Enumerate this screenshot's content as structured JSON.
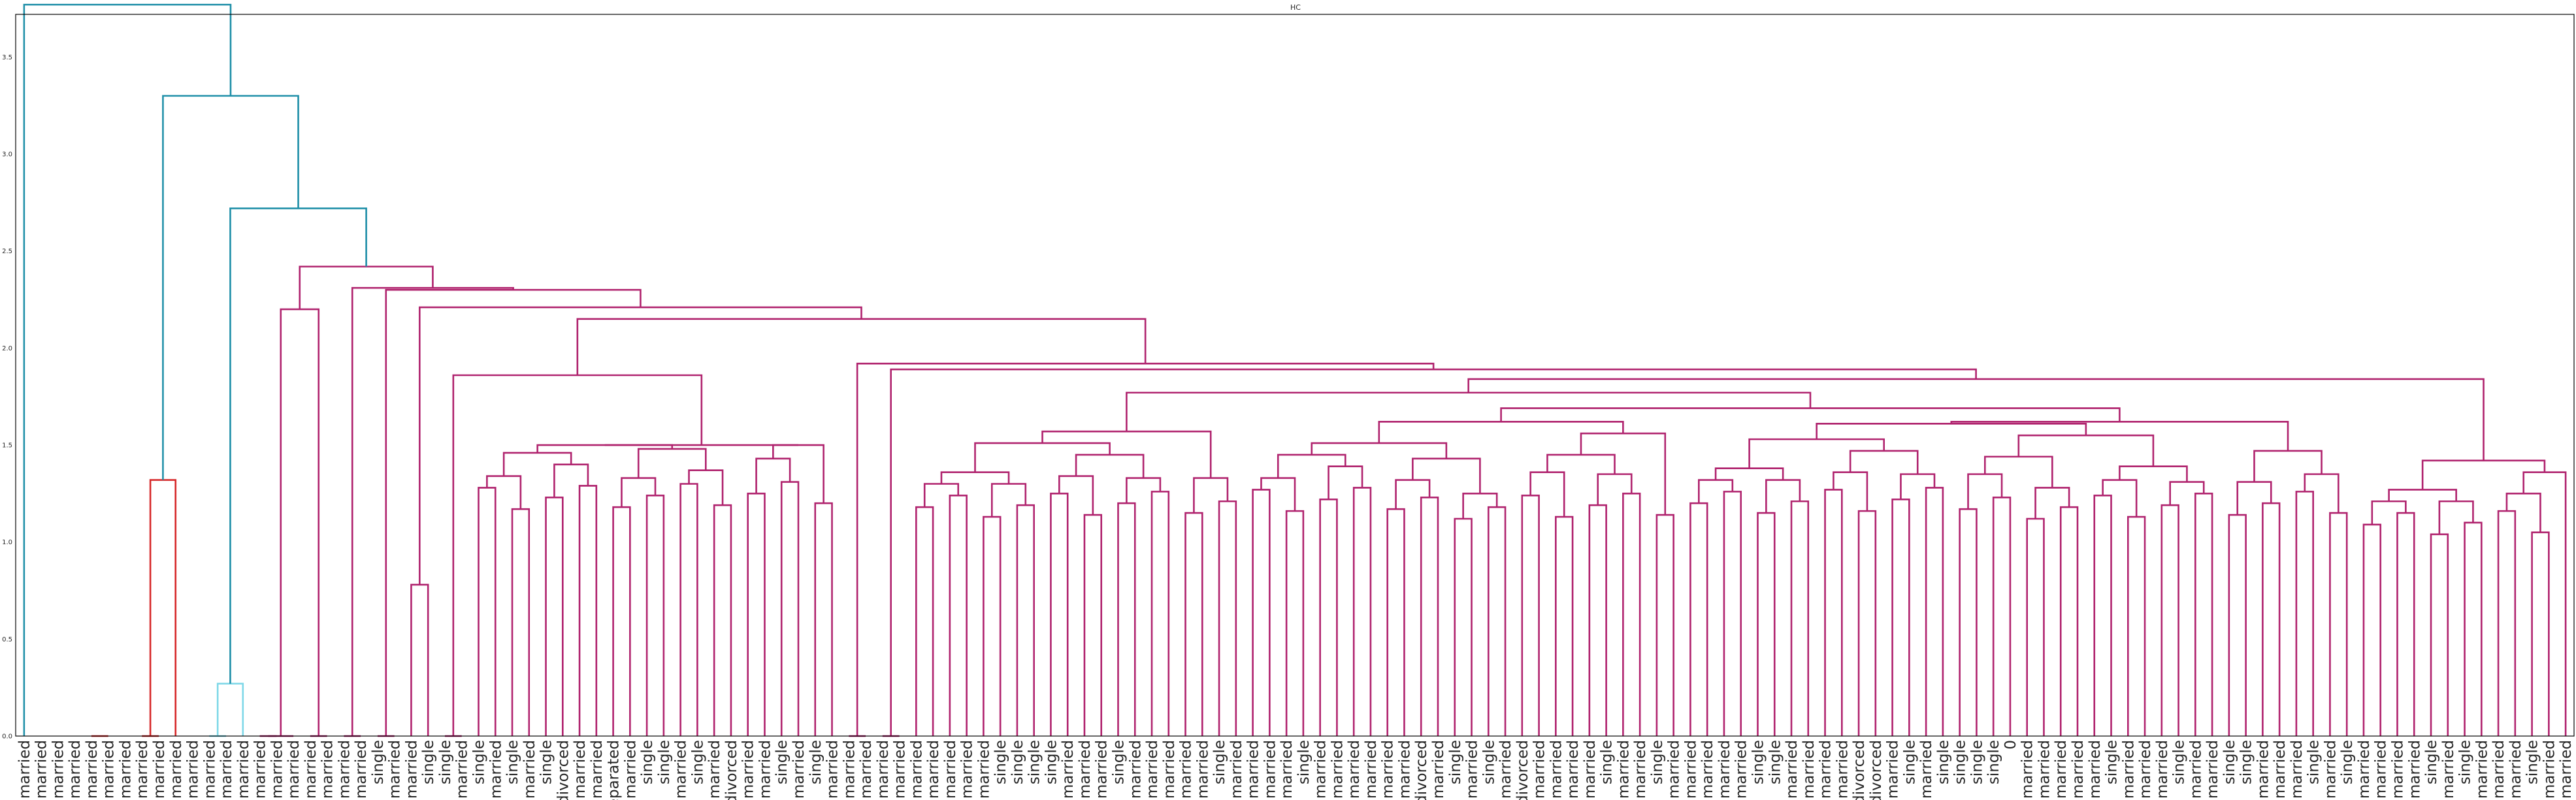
{
  "chart_data": {
    "type": "dendrogram",
    "title": "HC",
    "xlabel": "",
    "ylabel": "",
    "ylim": [
      0,
      3.72
    ],
    "yticks": [
      0.0,
      0.5,
      1.0,
      1.5,
      2.0,
      2.5,
      3.0,
      3.5
    ],
    "grid": false,
    "colors": {
      "above_threshold": "#1f8fa8",
      "cluster_red": "#d62728",
      "cluster_cyan": "#7fd8e8",
      "cluster_magenta": "#b0236e"
    },
    "leaf_labels": [
      "married",
      "married",
      "married",
      "married",
      "married",
      "married",
      "married",
      "married",
      "married",
      "married",
      "married",
      "married",
      "married",
      "married",
      "married",
      "married",
      "married",
      "married",
      "married",
      "married",
      "married",
      "single",
      "married",
      "married",
      "single",
      "single",
      "married",
      "single",
      "married",
      "single",
      "married",
      "single",
      "divorced",
      "married",
      "married",
      "separated",
      "married",
      "single",
      "single",
      "married",
      "single",
      "married",
      "divorced",
      "married",
      "married",
      "single",
      "married",
      "single",
      "married",
      "married",
      "married",
      "married",
      "married",
      "married",
      "married",
      "married",
      "married",
      "married",
      "single",
      "single",
      "single",
      "single",
      "married",
      "married",
      "married",
      "single",
      "married",
      "married",
      "married",
      "married",
      "married",
      "single",
      "married",
      "married",
      "married",
      "married",
      "single",
      "married",
      "married",
      "married",
      "married",
      "married",
      "married",
      "divorced",
      "married",
      "single",
      "married",
      "single",
      "married",
      "divorced",
      "married",
      "married",
      "married",
      "married",
      "single",
      "married",
      "married",
      "single",
      "married",
      "married",
      "married",
      "married",
      "married",
      "single",
      "single",
      "married",
      "married",
      "married",
      "married",
      "divorced",
      "divorced",
      "married",
      "single",
      "married",
      "single",
      "single",
      "single",
      "single",
      "0",
      "married",
      "married",
      "married",
      "married",
      "married",
      "single",
      "married",
      "married",
      "married",
      "single",
      "married",
      "married",
      "single",
      "single",
      "married",
      "married",
      "married",
      "single",
      "married",
      "single",
      "married",
      "married",
      "married",
      "married",
      "single",
      "married",
      "single",
      "married",
      "married",
      "married",
      "single",
      "married",
      "married"
    ],
    "merges": [
      {
        "x": [
          1,
          3
        ],
        "h": 0.05,
        "c": "mag"
      },
      {
        "x": [
          2,
          5
        ],
        "h": 0.1,
        "c": "mag"
      },
      {
        "x": [
          1,
          3
        ],
        "h": 0.05,
        "c": "mag"
      },
      {
        "x": [
          1,
          2
        ],
        "h": 0.05,
        "c": "mag"
      },
      {
        "x": [
          0,
          0
        ],
        "h": 0,
        "c": "mag"
      }
    ],
    "links": [
      {
        "p": [
          [
            0,
            3.77
          ],
          [
            12.5,
            3.77
          ]
        ],
        "h": null
      },
      {
        "cluster": "blue",
        "segments": [
          [
            0.5,
            0,
            0.5,
            3.77
          ],
          [
            0.5,
            3.77,
            12.5,
            3.77
          ],
          [
            12.5,
            3.77,
            12.5,
            3.3
          ],
          [
            8.5,
            3.3,
            18.5,
            3.3
          ],
          [
            8.5,
            3.3,
            8.5,
            1.32
          ],
          [
            18.5,
            3.3,
            18.5,
            2.72
          ],
          [
            12.5,
            2.72,
            22.5,
            2.72
          ],
          [
            12.5,
            2.72,
            12.5,
            0.27
          ],
          [
            22.5,
            2.72,
            22.5,
            2.42
          ]
        ]
      },
      {
        "cluster": "red",
        "segments": [
          [
            7.5,
            0,
            7.5,
            1.32
          ],
          [
            7.5,
            1.32,
            9.5,
            1.32
          ],
          [
            9.5,
            1.32,
            9.5,
            0
          ]
        ]
      },
      {
        "cluster": "cyan",
        "segments": [
          [
            11.5,
            0,
            11.5,
            0.27
          ],
          [
            11.5,
            0.27,
            13.5,
            0.27
          ],
          [
            13.5,
            0.27,
            13.5,
            0
          ]
        ]
      }
    ],
    "note": ""
  }
}
